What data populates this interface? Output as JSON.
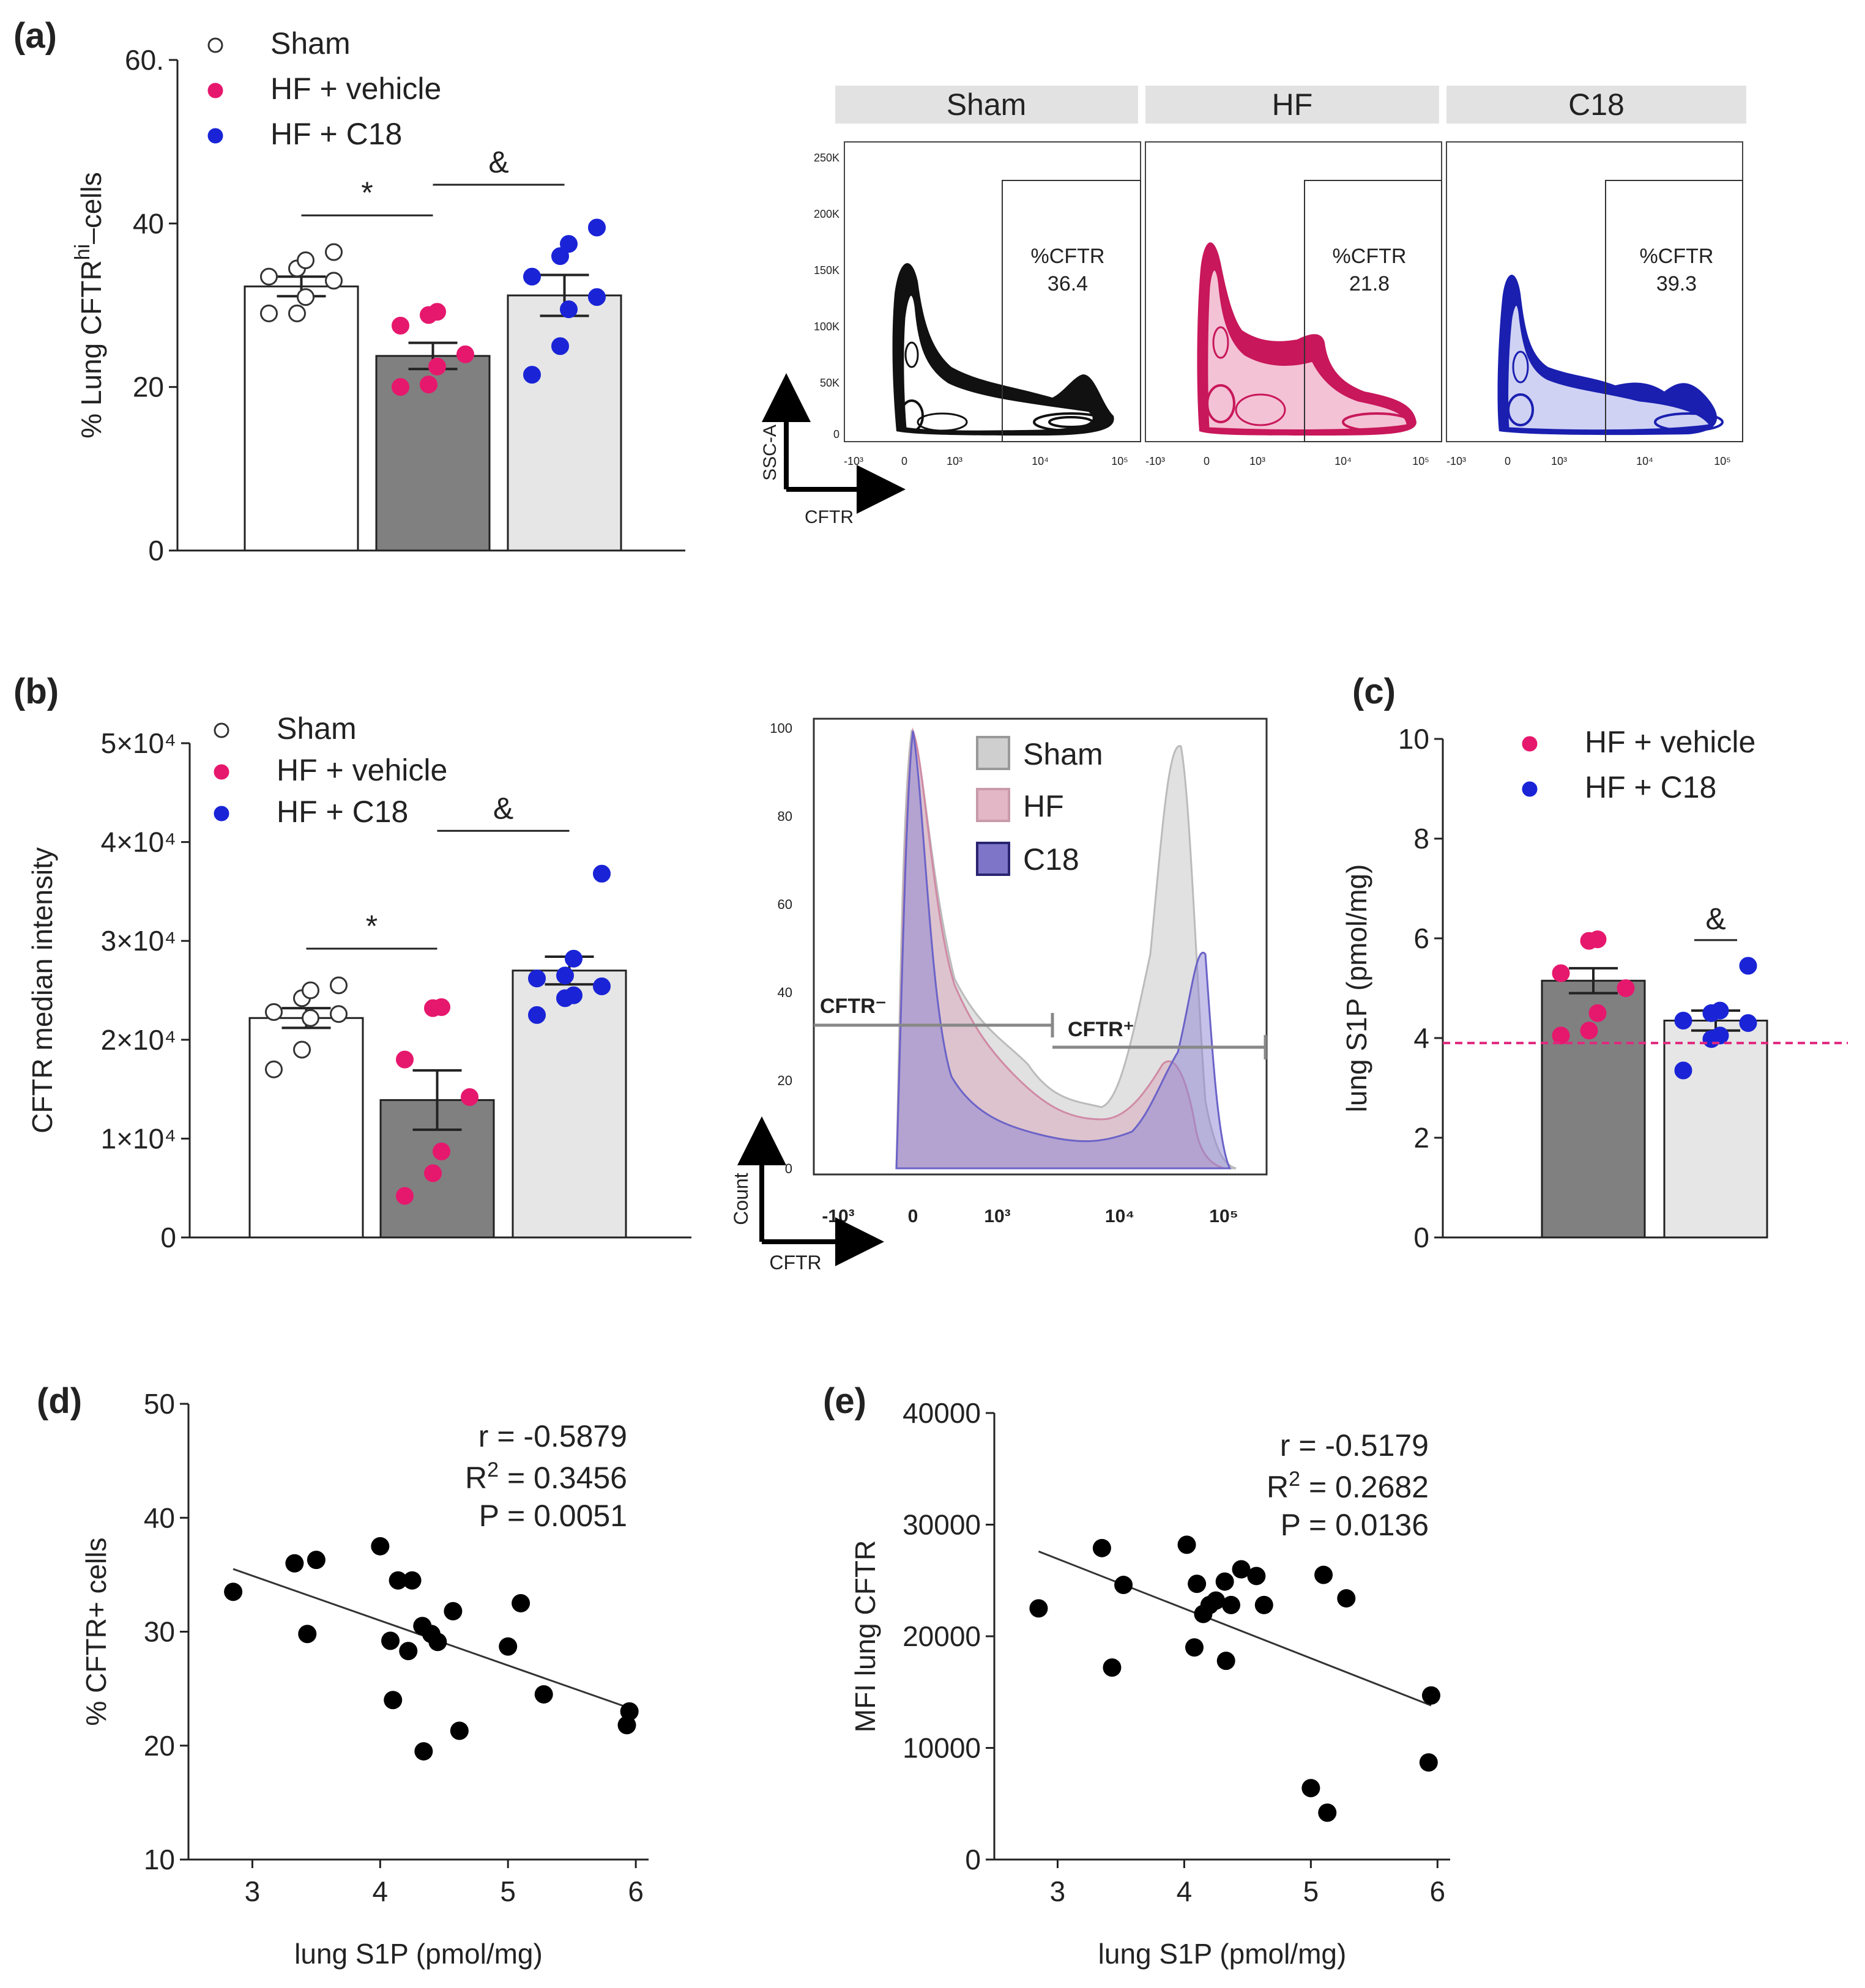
{
  "panel_labels": {
    "a": "(a)",
    "b": "(b)",
    "c": "(c)",
    "d": "(d)",
    "e": "(e)"
  },
  "colors": {
    "sham_fill": "#ffffff",
    "hf_fill": "#808080",
    "c18_fill": "#e6e6e6",
    "hf_dot": "#e6186d",
    "c18_dot": "#1a24d6",
    "sham_contour": "#111111",
    "hf_contour": "#c8175a",
    "c18_contour": "#1a1fb0",
    "dashed_line": "#e0287e"
  },
  "chart_data": [
    {
      "id": "a",
      "type": "bar",
      "ylabel": "% Lung CFTR",
      "ylabel_sup": "hi",
      "ylabel_suffix": "–cells",
      "ylim": [
        0,
        60
      ],
      "yticks": [
        "0",
        "20",
        "40",
        "60."
      ],
      "legend": [
        "Sham",
        "HF + vehicle",
        "HF + C18"
      ],
      "categories": [
        "Sham",
        "HF + vehicle",
        "HF + C18"
      ],
      "values": [
        32.3,
        23.8,
        31.2
      ],
      "sem": [
        1.2,
        1.6,
        2.5
      ],
      "points": [
        [
          29,
          29,
          31,
          33,
          33.5,
          34.5,
          35.5,
          36.5
        ],
        [
          20,
          20.3,
          22.5,
          24,
          27.5,
          28.8,
          29.2
        ],
        [
          21.5,
          25,
          29.5,
          31,
          33.5,
          36,
          37.5,
          39.5
        ]
      ],
      "annotations": [
        {
          "text": "*",
          "between": [
            0,
            1
          ]
        },
        {
          "text": "&",
          "between": [
            1,
            2
          ]
        }
      ]
    },
    {
      "id": "b",
      "type": "bar",
      "ylabel": "CFTR median intensity",
      "ylim": [
        0,
        50000
      ],
      "yticks": [
        "0",
        "1×10⁴",
        "2×10⁴",
        "3×10⁴",
        "4×10⁴",
        "5×10⁴"
      ],
      "legend": [
        "Sham",
        "HF + vehicle",
        "HF + C18"
      ],
      "categories": [
        "Sham",
        "HF + vehicle",
        "HF + C18"
      ],
      "values": [
        22200,
        13900,
        27000
      ],
      "sem": [
        1000,
        3000,
        1400
      ],
      "points": [
        [
          17000,
          19000,
          22200,
          22600,
          22800,
          24200,
          25000,
          25500
        ],
        [
          4200,
          6500,
          8700,
          14200,
          18000,
          23200,
          23300
        ],
        [
          22500,
          24200,
          24500,
          25400,
          26200,
          26500,
          28200,
          36800
        ]
      ],
      "annotations": [
        {
          "text": "*",
          "between": [
            0,
            1
          ]
        },
        {
          "text": "&",
          "between": [
            1,
            2
          ]
        }
      ]
    },
    {
      "id": "c",
      "type": "bar",
      "ylabel": "lung S1P (pmol/mg)",
      "ylim": [
        0,
        10
      ],
      "yticks": [
        "0",
        "2",
        "4",
        "6",
        "8",
        "10"
      ],
      "legend": [
        "HF + vehicle",
        "HF + C18"
      ],
      "categories": [
        "HF + vehicle",
        "HF + C18"
      ],
      "values": [
        5.15,
        4.35
      ],
      "sem": [
        0.25,
        0.2
      ],
      "points": [
        [
          4.05,
          4.15,
          4.5,
          5.0,
          5.3,
          5.95,
          5.98
        ],
        [
          3.35,
          3.98,
          4.05,
          4.3,
          4.35,
          4.5,
          4.55,
          5.45
        ]
      ],
      "reference_line": 3.9,
      "annotations": [
        {
          "text": "&",
          "over": 1
        }
      ]
    },
    {
      "id": "d",
      "type": "scatter",
      "xlabel": "lung S1P (pmol/mg)",
      "ylabel": "% CFTR+ cells",
      "xlim": [
        2.5,
        6.1
      ],
      "ylim": [
        10,
        50
      ],
      "xticks": [
        "3",
        "4",
        "5",
        "6"
      ],
      "yticks": [
        "10",
        "20",
        "30",
        "40",
        "50"
      ],
      "x": [
        2.85,
        3.33,
        3.43,
        3.5,
        4.0,
        4.08,
        4.1,
        4.14,
        4.22,
        4.25,
        4.33,
        4.34,
        4.4,
        4.45,
        4.57,
        4.62,
        5.0,
        5.1,
        5.28,
        5.93,
        5.95
      ],
      "y": [
        33.5,
        36.0,
        29.8,
        36.3,
        37.5,
        29.2,
        24.0,
        34.5,
        28.3,
        34.5,
        30.5,
        19.5,
        29.8,
        29.1,
        31.8,
        21.3,
        28.7,
        32.5,
        24.5,
        21.8,
        23.0
      ],
      "fit": {
        "x": [
          2.85,
          5.95
        ],
        "y": [
          35.5,
          23.3
        ]
      },
      "stats": [
        "r = -0.5879",
        "R",
        "2",
        " = 0.3456",
        "P = 0.0051"
      ]
    },
    {
      "id": "e",
      "type": "scatter",
      "xlabel": "lung S1P (pmol/mg)",
      "ylabel": "MFI lung CFTR",
      "xlim": [
        2.5,
        6.1
      ],
      "ylim": [
        0,
        40000
      ],
      "xticks": [
        "3",
        "4",
        "5",
        "6"
      ],
      "yticks": [
        "0",
        "10000",
        "20000",
        "30000",
        "40000"
      ],
      "x": [
        2.85,
        3.35,
        3.43,
        3.52,
        4.02,
        4.08,
        4.1,
        4.15,
        4.2,
        4.25,
        4.32,
        4.33,
        4.37,
        4.45,
        4.57,
        4.63,
        5.0,
        5.1,
        5.13,
        5.28,
        5.93,
        5.95
      ],
      "y": [
        22500,
        27900,
        17200,
        24600,
        28200,
        19000,
        24700,
        22000,
        22800,
        23200,
        24900,
        17800,
        22800,
        26000,
        25400,
        22800,
        6400,
        25500,
        4200,
        23400,
        8700,
        14700
      ],
      "fit": {
        "x": [
          2.85,
          5.95
        ],
        "y": [
          27600,
          13800
        ]
      },
      "stats": [
        "r = -0.5179",
        "R",
        "2",
        " = 0.2682",
        "P = 0.0136"
      ]
    }
  ],
  "flow_a": {
    "strips": [
      "Sham",
      "HF",
      "C18"
    ],
    "gate_label": "%CFTR",
    "gate_values": [
      "36.4",
      "21.8",
      "39.3"
    ],
    "y_ticks": [
      "250K",
      "200K",
      "150K",
      "100K",
      "50K",
      "0"
    ],
    "x_ticks": [
      "-10³",
      "0",
      "10³",
      "10⁴",
      "10⁵"
    ],
    "y_axis": "SSC-A",
    "x_axis": "CFTR"
  },
  "flow_b": {
    "legend": [
      "Sham",
      "HF",
      "C18"
    ],
    "y_ticks": [
      "0",
      "20",
      "40",
      "60",
      "80",
      "100"
    ],
    "x_ticks": [
      "-10³",
      "0",
      "10³",
      "10⁴",
      "10⁵"
    ],
    "gate_neg": "CFTR⁻",
    "gate_pos": "CFTR⁺",
    "y_axis": "Count",
    "x_axis": "CFTR"
  }
}
